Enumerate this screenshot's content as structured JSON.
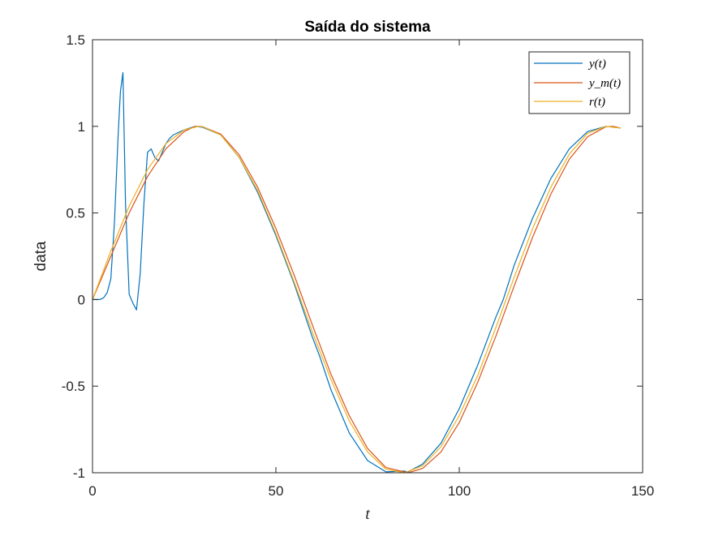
{
  "chart_data": {
    "type": "line",
    "title": "Saída do sistema",
    "xlabel": "t",
    "ylabel": "data",
    "xlim": [
      0,
      150
    ],
    "ylim": [
      -1,
      1.5
    ],
    "xticks": [
      0,
      50,
      100,
      150
    ],
    "xtick_labels": [
      "0",
      "50",
      "100",
      "150"
    ],
    "yticks": [
      -1,
      -0.5,
      0,
      0.5,
      1,
      1.5
    ],
    "ytick_labels": [
      "-1",
      "-0.5",
      "0",
      "0.5",
      "1",
      "1.5"
    ],
    "grid": false,
    "legend_position": "top-right",
    "legend": [
      {
        "label": "y(t)"
      },
      {
        "label": "y_m(t)"
      },
      {
        "label": "r(t)"
      }
    ],
    "series": [
      {
        "name": "y(t)",
        "color": "#0072BD",
        "x": [
          0,
          2,
          3,
          4,
          5,
          6,
          7,
          7.6,
          8.3,
          9,
          10,
          11,
          12,
          13,
          14,
          15,
          16,
          17,
          18,
          19,
          20,
          21,
          22,
          25,
          28,
          30,
          35,
          40,
          45,
          50,
          55,
          60,
          62,
          65,
          70,
          75,
          80,
          85,
          86,
          90,
          95,
          100,
          105,
          110,
          112,
          115,
          120,
          125,
          130,
          135,
          140,
          142,
          144
        ],
        "y": [
          0,
          0,
          0.01,
          0.04,
          0.12,
          0.45,
          0.95,
          1.2,
          1.31,
          0.55,
          0.03,
          -0.02,
          -0.06,
          0.15,
          0.55,
          0.85,
          0.87,
          0.82,
          0.8,
          0.85,
          0.9,
          0.93,
          0.95,
          0.98,
          1.0,
          0.995,
          0.95,
          0.82,
          0.62,
          0.37,
          0.09,
          -0.22,
          -0.33,
          -0.52,
          -0.77,
          -0.93,
          -0.995,
          -0.99,
          -0.995,
          -0.95,
          -0.83,
          -0.63,
          -0.38,
          -0.1,
          0.0,
          0.2,
          0.47,
          0.7,
          0.87,
          0.97,
          1.0,
          0.995,
          0.99
        ]
      },
      {
        "name": "y_m(t)",
        "color": "#D95319",
        "x": [
          0,
          5,
          10,
          15,
          20,
          25,
          28,
          30,
          35,
          40,
          45,
          50,
          55,
          60,
          65,
          70,
          75,
          80,
          86,
          90,
          95,
          100,
          105,
          110,
          115,
          120,
          125,
          130,
          135,
          140,
          142,
          144
        ],
        "y": [
          0,
          0.25,
          0.5,
          0.71,
          0.87,
          0.97,
          1.0,
          0.998,
          0.955,
          0.835,
          0.65,
          0.41,
          0.14,
          -0.15,
          -0.43,
          -0.67,
          -0.86,
          -0.97,
          -1.0,
          -0.975,
          -0.88,
          -0.71,
          -0.48,
          -0.21,
          0.08,
          0.36,
          0.61,
          0.81,
          0.94,
          0.998,
          1.0,
          0.99
        ]
      },
      {
        "name": "r(t)",
        "color": "#EDB120",
        "x": [
          0,
          5,
          10,
          15,
          20,
          25,
          29,
          30,
          35,
          40,
          45,
          50,
          55,
          60,
          65,
          70,
          75,
          80,
          85,
          90,
          95,
          100,
          105,
          110,
          115,
          120,
          125,
          130,
          135,
          140,
          142,
          144
        ],
        "y": [
          0,
          0.28,
          0.54,
          0.75,
          0.9,
          0.98,
          1.0,
          0.998,
          0.95,
          0.82,
          0.63,
          0.38,
          0.1,
          -0.19,
          -0.46,
          -0.7,
          -0.88,
          -0.98,
          -1.0,
          -0.96,
          -0.85,
          -0.67,
          -0.44,
          -0.16,
          0.13,
          0.41,
          0.65,
          0.84,
          0.96,
          1.0,
          0.995,
          0.99
        ]
      }
    ]
  }
}
